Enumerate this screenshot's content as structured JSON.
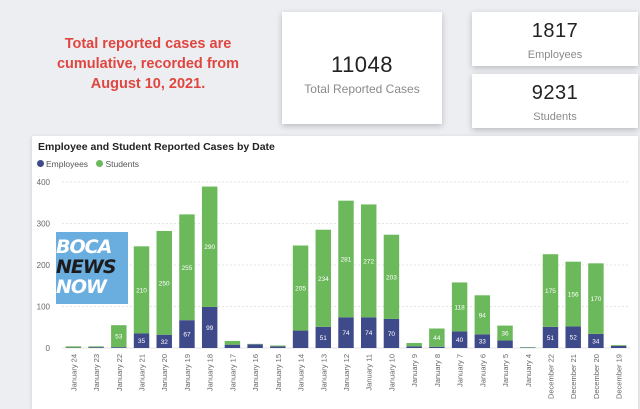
{
  "note": "Total reported cases are cumulative, recorded from August 10, 2021.",
  "cards": {
    "total": {
      "value": "11048",
      "label": "Total Reported Cases"
    },
    "employees": {
      "value": "1817",
      "label": "Employees"
    },
    "students": {
      "value": "9231",
      "label": "Students"
    }
  },
  "logo": {
    "line1": "BOCA",
    "line2": "NEWS",
    "line3": "NOW"
  },
  "chart_data": {
    "type": "bar",
    "stacked": true,
    "title": "Employee and Student Reported Cases by Date",
    "xlabel": "",
    "ylabel": "",
    "ylim": [
      0,
      400
    ],
    "yticks": [
      0,
      100,
      200,
      300,
      400
    ],
    "legend": "top-left",
    "categories": [
      "January 24",
      "January 23",
      "January 22",
      "January 21",
      "January 20",
      "January 19",
      "January 18",
      "January 17",
      "January 16",
      "January 15",
      "January 14",
      "January 13",
      "January 12",
      "January 11",
      "January 10",
      "January 9",
      "January 8",
      "January 7",
      "January 6",
      "January 5",
      "January 4",
      "December 22",
      "December 21",
      "December 20",
      "December 19"
    ],
    "series": [
      {
        "name": "Employees",
        "color": "#3f4a8a",
        "values": [
          1,
          2,
          2,
          35,
          32,
          67,
          99,
          8,
          9,
          4,
          42,
          51,
          74,
          74,
          70,
          4,
          3,
          40,
          33,
          18,
          1,
          51,
          52,
          34,
          5
        ],
        "labels": [
          null,
          null,
          null,
          "35",
          "32",
          "67",
          "99",
          null,
          null,
          null,
          null,
          "51",
          "74",
          "74",
          "70",
          null,
          null,
          "40",
          "33",
          null,
          null,
          "51",
          "52",
          "34",
          null
        ]
      },
      {
        "name": "Students",
        "color": "#6bb95b",
        "values": [
          3,
          2,
          53,
          210,
          250,
          255,
          290,
          9,
          1,
          2,
          205,
          234,
          281,
          272,
          203,
          8,
          44,
          118,
          94,
          36,
          1,
          175,
          156,
          170,
          2
        ],
        "labels": [
          null,
          null,
          "53",
          "210",
          "250",
          "255",
          "290",
          null,
          null,
          null,
          "205",
          "234",
          "281",
          "272",
          "203",
          null,
          "44",
          "118",
          "94",
          "36",
          null,
          "175",
          "156",
          "170",
          null
        ]
      }
    ]
  }
}
